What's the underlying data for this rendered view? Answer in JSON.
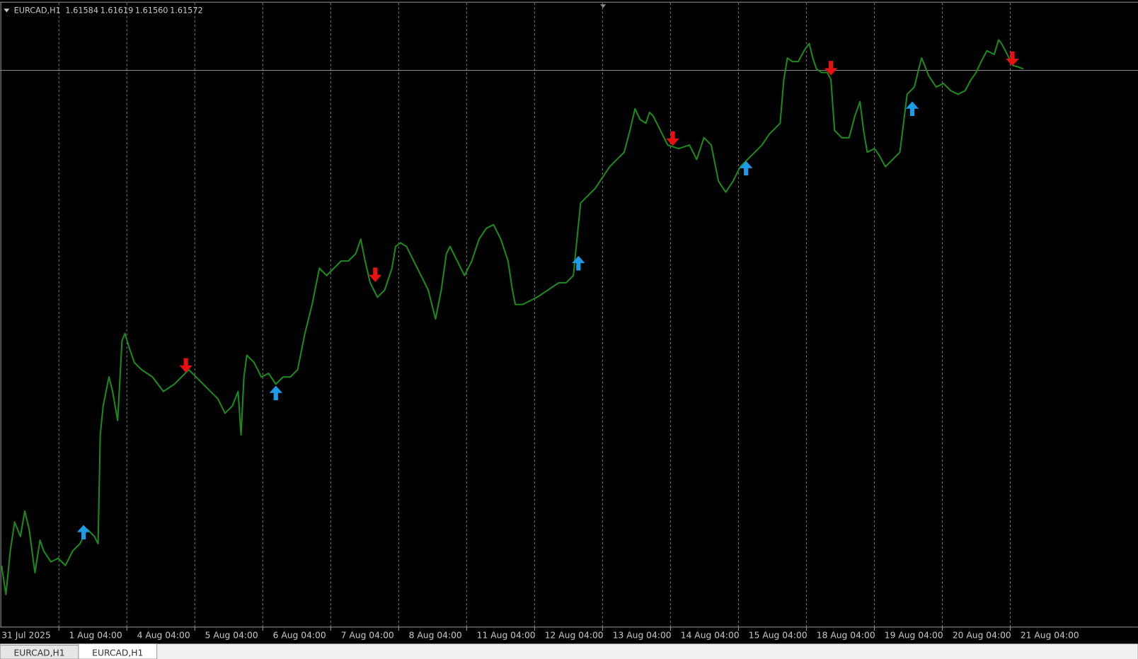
{
  "header": {
    "symbol": "EURCAD,H1",
    "ohlc": [
      "1.61584",
      "1.61619",
      "1.61560",
      "1.61572"
    ]
  },
  "time_axis": {
    "labels": [
      "31 Jul 2025",
      "1 Aug 04:00",
      "4 Aug 04:00",
      "5 Aug 04:00",
      "6 Aug 04:00",
      "7 Aug 04:00",
      "8 Aug 04:00",
      "11 Aug 04:00",
      "12 Aug 04:00",
      "13 Aug 04:00",
      "14 Aug 04:00",
      "15 Aug 04:00",
      "18 Aug 04:00",
      "19 Aug 04:00",
      "20 Aug 04:00",
      "21 Aug 04:00"
    ]
  },
  "tabs": [
    "EURCAD,H1",
    "EURCAD,H1"
  ]
}
